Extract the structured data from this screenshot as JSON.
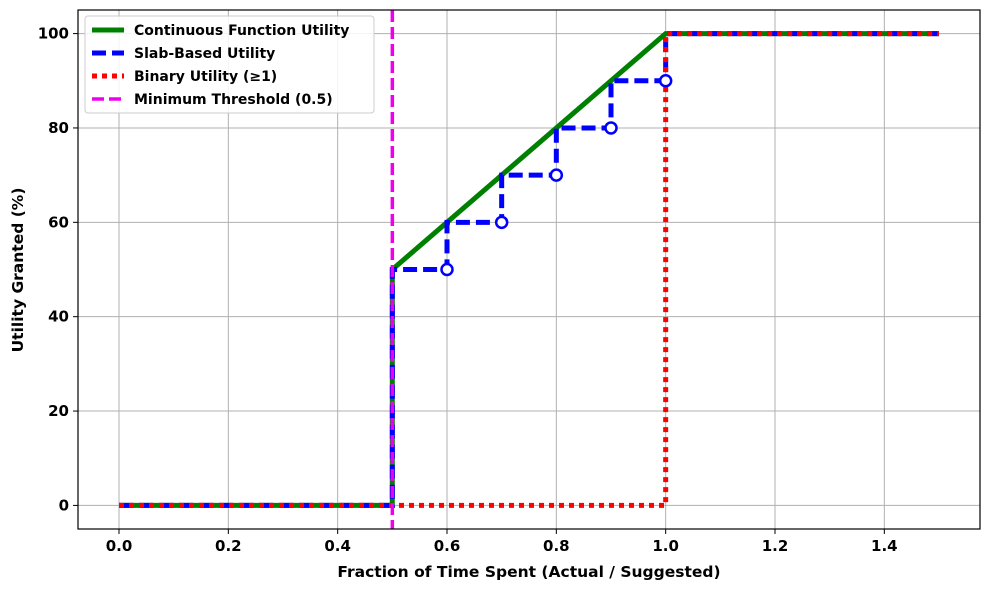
{
  "chart_data": {
    "type": "line",
    "title": "",
    "xlabel": "Fraction of Time Spent (Actual / Suggested)",
    "ylabel": "Utility Granted (%)",
    "xlim": [
      -0.075,
      1.575
    ],
    "ylim": [
      -5,
      105
    ],
    "xticks": [
      0.0,
      0.2,
      0.4,
      0.6,
      0.8,
      1.0,
      1.2,
      1.4
    ],
    "xtick_labels": [
      "0.0",
      "0.2",
      "0.4",
      "0.6",
      "0.8",
      "1.0",
      "1.2",
      "1.4"
    ],
    "yticks": [
      0,
      20,
      40,
      60,
      80,
      100
    ],
    "ytick_labels": [
      "0",
      "20",
      "40",
      "60",
      "80",
      "100"
    ],
    "grid": true,
    "legend_position": "top-left",
    "series": [
      {
        "name": "Continuous Function Utility",
        "color": "#008000",
        "style": "solid",
        "points": [
          [
            0.0,
            0
          ],
          [
            0.4999,
            0
          ],
          [
            0.5,
            50
          ],
          [
            1.0,
            100
          ],
          [
            1.5,
            100
          ]
        ]
      },
      {
        "name": "Slab-Based Utility",
        "color": "#0000ff",
        "style": "dashed",
        "points": [
          [
            0.0,
            0
          ],
          [
            0.5,
            0
          ],
          [
            0.5,
            50
          ],
          [
            0.6,
            50
          ],
          [
            0.6,
            60
          ],
          [
            0.7,
            60
          ],
          [
            0.7,
            70
          ],
          [
            0.8,
            70
          ],
          [
            0.8,
            80
          ],
          [
            0.9,
            80
          ],
          [
            0.9,
            90
          ],
          [
            1.0,
            90
          ],
          [
            1.0,
            100
          ],
          [
            1.5,
            100
          ]
        ],
        "open_markers": [
          [
            0.6,
            50
          ],
          [
            0.7,
            60
          ],
          [
            0.8,
            70
          ],
          [
            0.9,
            80
          ],
          [
            1.0,
            90
          ]
        ]
      },
      {
        "name": "Binary Utility (≥1)",
        "color": "#ff0000",
        "style": "dotted",
        "points": [
          [
            0.0,
            0
          ],
          [
            1.0,
            0
          ],
          [
            1.0,
            100
          ],
          [
            1.5,
            100
          ]
        ]
      }
    ],
    "vlines": [
      {
        "name": "Minimum Threshold (0.5)",
        "x": 0.5,
        "color": "#ee00ee",
        "style": "dashed"
      }
    ]
  }
}
